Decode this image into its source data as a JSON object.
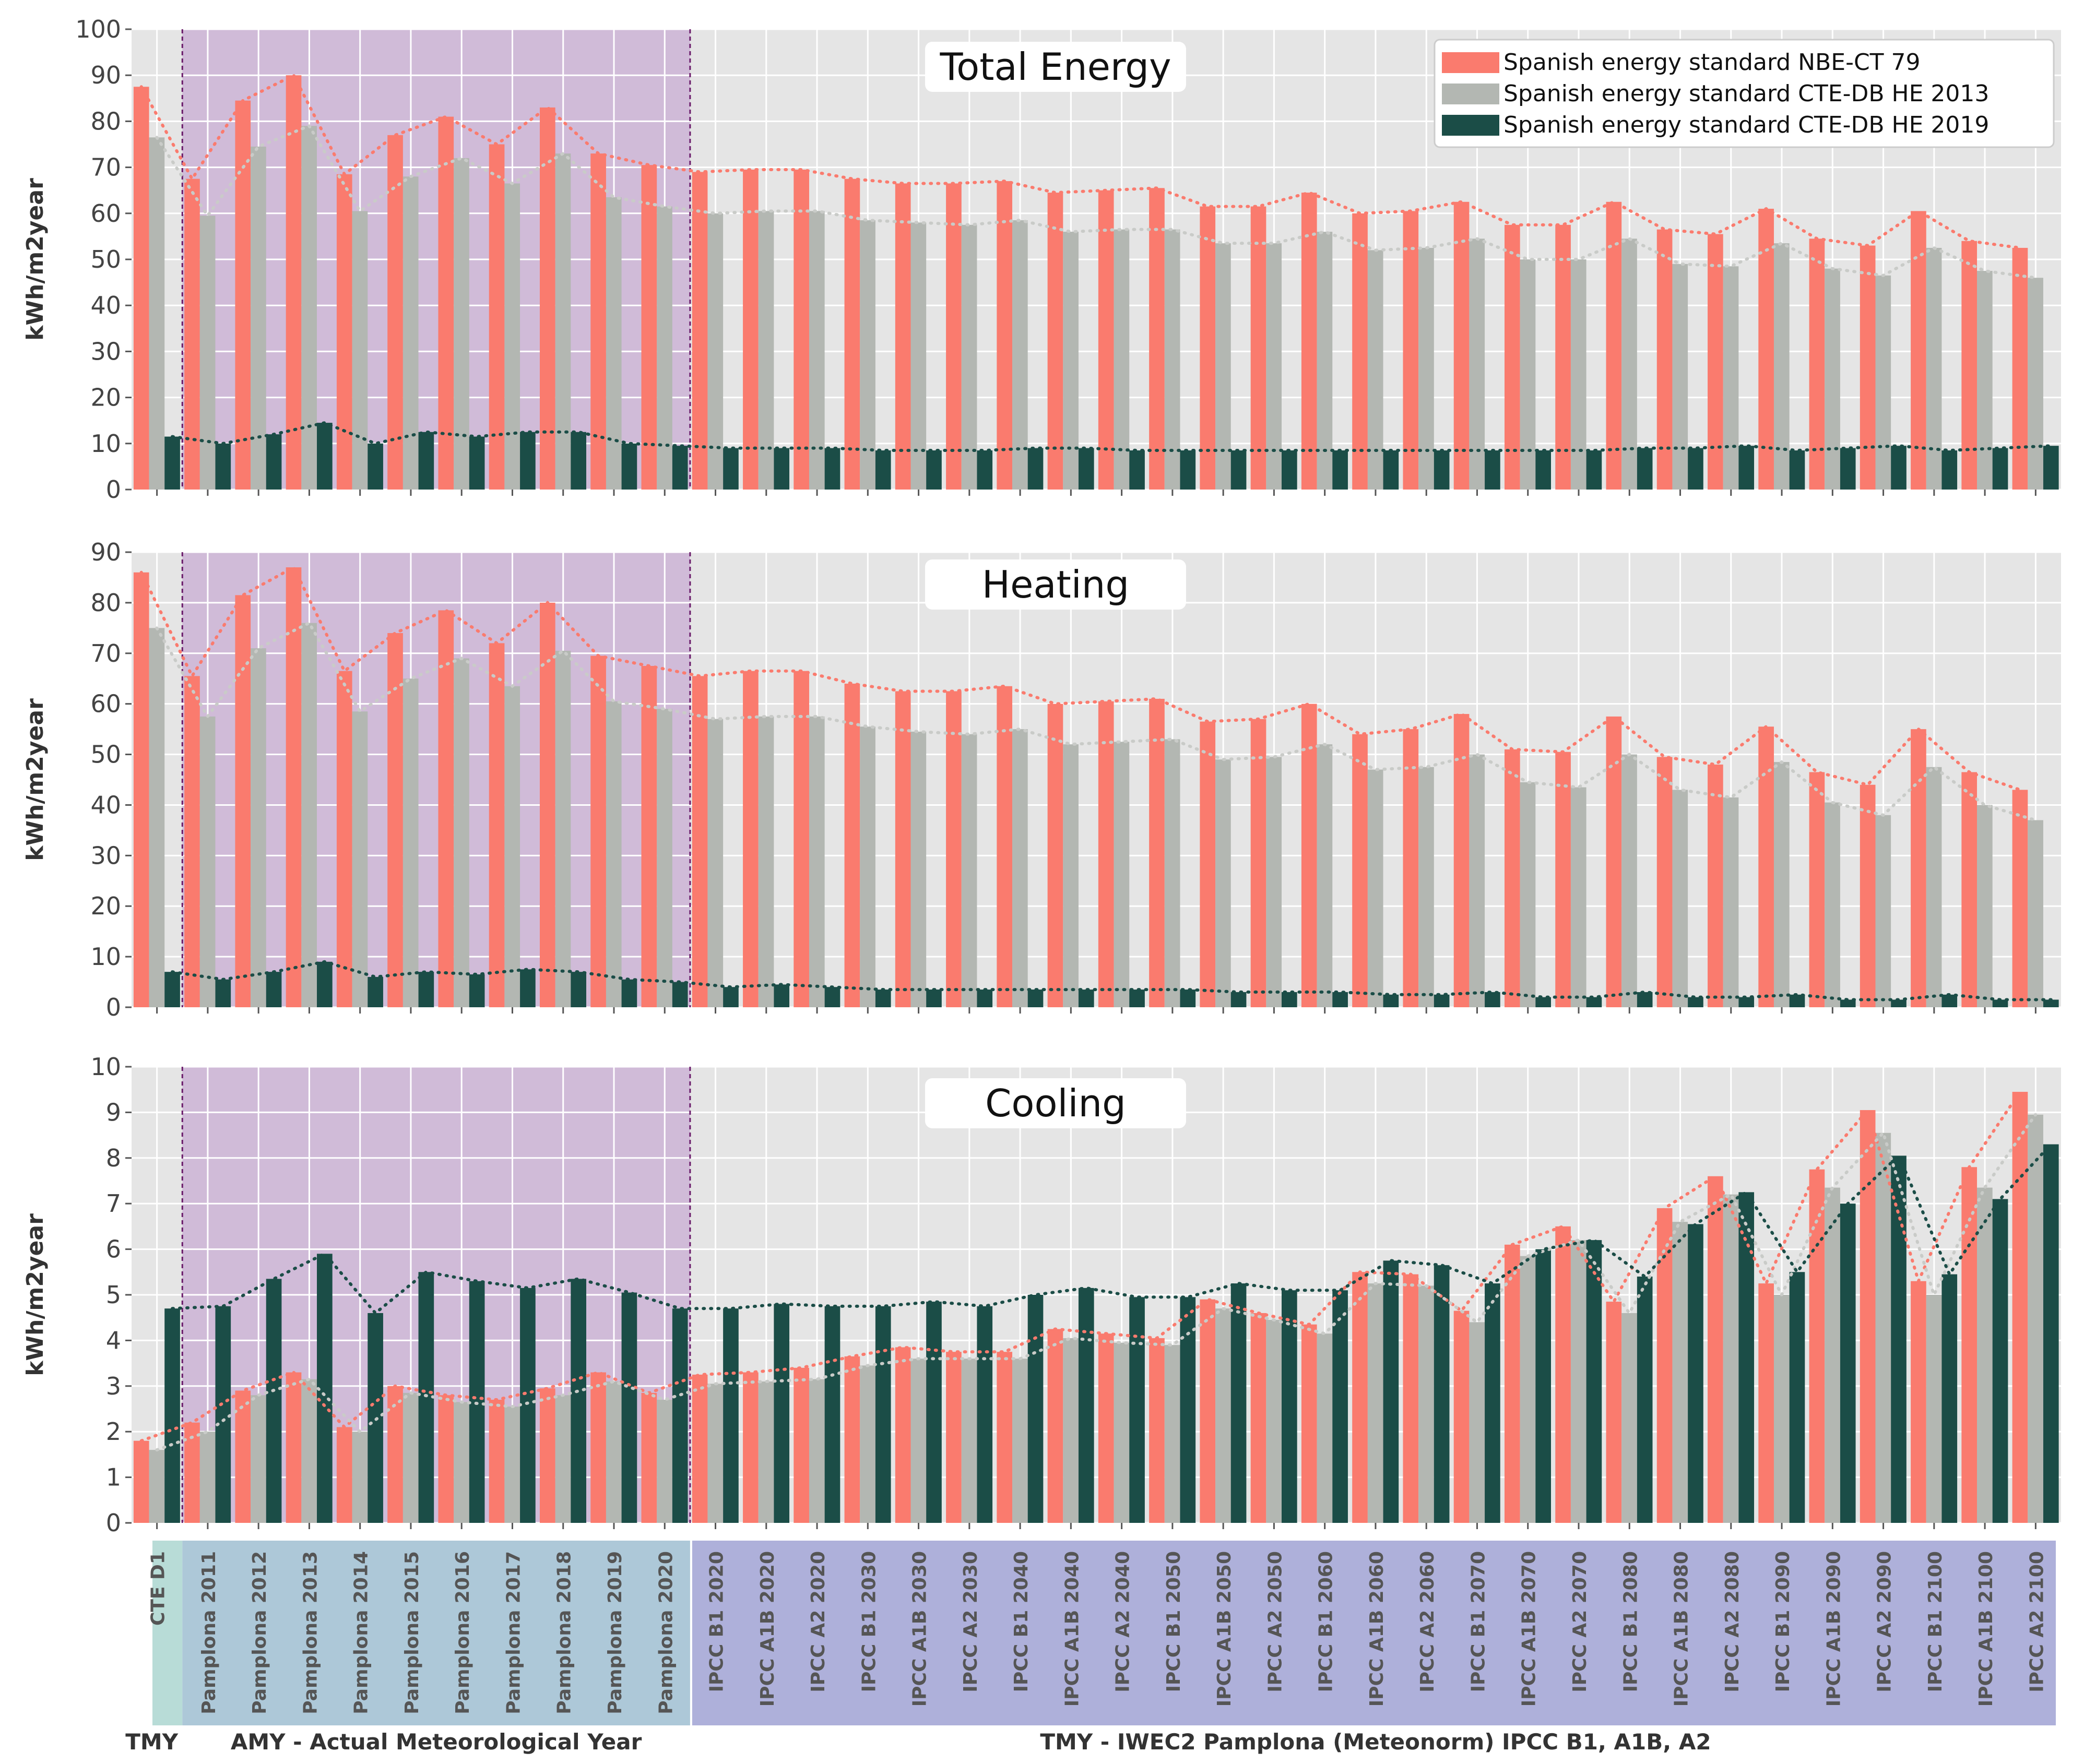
{
  "colors": {
    "nbe": "#fa7b6e",
    "cte2013": "#b3b7b2",
    "cte2019": "#1b4d47",
    "panel_bg": "#e5e5e5",
    "amy_shade": "#cdb4d6",
    "tmy_label_bg": "#b8dcd7",
    "amy_label_bg": "#adc8d8",
    "ipcc_label_bg": "#aeb0da"
  },
  "legend": [
    "Spanish energy standard NBE-CT 79",
    "Spanish energy standard CTE-DB HE 2013",
    "Spanish energy standard CTE-DB HE 2019"
  ],
  "categories": [
    "CTE D1",
    "Pamplona 2011",
    "Pamplona 2012",
    "Pamplona 2013",
    "Pamplona 2014",
    "Pamplona 2015",
    "Pamplona 2016",
    "Pamplona 2017",
    "Pamplona 2018",
    "Pamplona 2019",
    "Pamplona 2020",
    "IPCC B1 2020",
    "IPCC A1B 2020",
    "IPCC A2 2020",
    "IPCC B1 2030",
    "IPCC A1B 2030",
    "IPCC A2 2030",
    "IPCC B1 2040",
    "IPCC A1B 2040",
    "IPCC A2 2040",
    "IPCC B1 2050",
    "IPCC A1B 2050",
    "IPCC A2 2050",
    "IPCC B1 2060",
    "IPCC A1B 2060",
    "IPCC A2 2060",
    "IPCC B1 2070",
    "IPCC A1B 2070",
    "IPCC A2 2070",
    "IPCC B1 2080",
    "IPCC A1B 2080",
    "IPCC A2 2080",
    "IPCC B1 2090",
    "IPCC A1B 2090",
    "IPCC A2 2090",
    "IPCC B1 2100",
    "IPCC A1B 2100",
    "IPCC A2 2100"
  ],
  "group_labels": {
    "tmy": "TMY",
    "amy": "AMY - Actual Meteorological Year",
    "ipcc": "TMY - IWEC2 Pamplona (Meteonorm) IPCC B1, A1B, A2"
  },
  "chart_data": [
    {
      "type": "bar",
      "title": "Total Energy",
      "ylabel": "kWh/m2year",
      "ylim": [
        0,
        100
      ],
      "yticks": [
        0,
        10,
        20,
        30,
        40,
        50,
        60,
        70,
        80,
        90,
        100
      ],
      "series": [
        {
          "name": "Spanish energy standard NBE-CT 79",
          "values": [
            87.5,
            67.5,
            84.5,
            90,
            68.5,
            77,
            81,
            75,
            83,
            73,
            70.5,
            69,
            69.5,
            69.5,
            67.5,
            66.5,
            66.5,
            67,
            64.5,
            65,
            65.5,
            61.5,
            61.5,
            64.5,
            60,
            60.5,
            62.5,
            57.5,
            57.5,
            62.5,
            56.5,
            55.5,
            61,
            54.5,
            53,
            60.5,
            54,
            52.5
          ]
        },
        {
          "name": "Spanish energy standard CTE-DB HE 2013",
          "values": [
            76.5,
            59.5,
            74.5,
            79,
            60.5,
            68,
            72,
            66.5,
            73,
            63.5,
            61.5,
            60,
            60.5,
            60.5,
            58.5,
            58,
            57.5,
            58.5,
            56,
            56.5,
            56.5,
            53.5,
            53.5,
            56,
            52,
            52.5,
            54.5,
            50,
            50,
            54.5,
            49,
            48.5,
            53.5,
            48,
            46.5,
            52.5,
            47.5,
            46
          ]
        },
        {
          "name": "Spanish energy standard CTE-DB HE 2019",
          "values": [
            11.5,
            10,
            12,
            14.5,
            10,
            12.5,
            11.5,
            12.5,
            12.5,
            10,
            9.5,
            9,
            9,
            9,
            8.5,
            8.5,
            8.5,
            9,
            9,
            8.5,
            8.5,
            8.5,
            8.5,
            8.5,
            8.5,
            8.5,
            8.5,
            8.5,
            8.5,
            9,
            9,
            9.5,
            8.5,
            9,
            9.5,
            8.5,
            9,
            9.5
          ]
        }
      ]
    },
    {
      "type": "bar",
      "title": "Heating",
      "ylabel": "kWh/m2year",
      "ylim": [
        0,
        90
      ],
      "yticks": [
        0,
        10,
        20,
        30,
        40,
        50,
        60,
        70,
        80,
        90
      ],
      "series": [
        {
          "name": "Spanish energy standard NBE-CT 79",
          "values": [
            86,
            65.5,
            81.5,
            87,
            66.5,
            74,
            78.5,
            72,
            80,
            69.5,
            67.5,
            65.5,
            66.5,
            66.5,
            64,
            62.5,
            62.5,
            63.5,
            60,
            60.5,
            61,
            56.5,
            57,
            60,
            54,
            55,
            58,
            51,
            50.5,
            57.5,
            49.5,
            48,
            55.5,
            46.5,
            44,
            55,
            46.5,
            43
          ]
        },
        {
          "name": "Spanish energy standard CTE-DB HE 2013",
          "values": [
            75,
            57.5,
            71,
            76,
            58.5,
            65,
            69,
            63.5,
            70.5,
            60.5,
            59,
            57,
            57.5,
            57.5,
            55.5,
            54.5,
            54,
            55,
            52,
            52.5,
            53,
            49,
            49.5,
            52,
            47,
            47.5,
            50,
            44.5,
            43.5,
            50,
            43,
            41.5,
            48.5,
            40.5,
            38,
            47.5,
            40,
            37
          ]
        },
        {
          "name": "Spanish energy standard CTE-DB HE 2019",
          "values": [
            7,
            5.5,
            7,
            9,
            6,
            7,
            6.5,
            7.5,
            7,
            5.5,
            5,
            4,
            4.5,
            4,
            3.5,
            3.5,
            3.5,
            3.5,
            3.5,
            3.5,
            3.5,
            3,
            3,
            3,
            2.5,
            2.5,
            3,
            2,
            2,
            3,
            2,
            2,
            2.5,
            1.5,
            1.5,
            2.5,
            1.5,
            1.5
          ]
        }
      ]
    },
    {
      "type": "bar",
      "title": "Cooling",
      "ylabel": "kWh/m2year",
      "ylim": [
        0,
        10
      ],
      "yticks": [
        0,
        1,
        2,
        3,
        4,
        5,
        6,
        7,
        8,
        9,
        10
      ],
      "series": [
        {
          "name": "Spanish energy standard NBE-CT 79",
          "values": [
            1.8,
            2.2,
            2.9,
            3.3,
            2.1,
            3.0,
            2.8,
            2.7,
            2.95,
            3.3,
            2.85,
            3.25,
            3.3,
            3.4,
            3.65,
            3.85,
            3.75,
            3.75,
            4.25,
            4.15,
            4.05,
            4.9,
            4.6,
            4.35,
            5.5,
            5.45,
            4.65,
            6.1,
            6.5,
            4.85,
            6.9,
            7.6,
            5.25,
            7.75,
            9.05,
            5.3,
            7.8,
            9.45
          ]
        },
        {
          "name": "Spanish energy standard CTE-DB HE 2013",
          "values": [
            1.6,
            2.0,
            2.8,
            3.15,
            2.0,
            2.85,
            2.65,
            2.55,
            2.8,
            3.1,
            2.7,
            3.05,
            3.1,
            3.15,
            3.45,
            3.6,
            3.6,
            3.6,
            4.05,
            3.95,
            3.9,
            4.7,
            4.45,
            4.15,
            5.25,
            5.2,
            4.4,
            5.85,
            6.2,
            4.6,
            6.6,
            7.2,
            5.0,
            7.35,
            8.55,
            5.0,
            7.35,
            8.95
          ]
        },
        {
          "name": "Spanish energy standard CTE-DB HE 2019",
          "values": [
            4.7,
            4.75,
            5.35,
            5.9,
            4.6,
            5.5,
            5.3,
            5.15,
            5.35,
            5.05,
            4.7,
            4.7,
            4.8,
            4.75,
            4.75,
            4.85,
            4.75,
            5.0,
            5.15,
            4.95,
            4.95,
            5.25,
            5.1,
            5.1,
            5.75,
            5.65,
            5.25,
            6.0,
            6.2,
            5.4,
            6.55,
            7.25,
            5.5,
            7.0,
            8.05,
            5.45,
            7.1,
            8.3
          ]
        }
      ]
    }
  ]
}
